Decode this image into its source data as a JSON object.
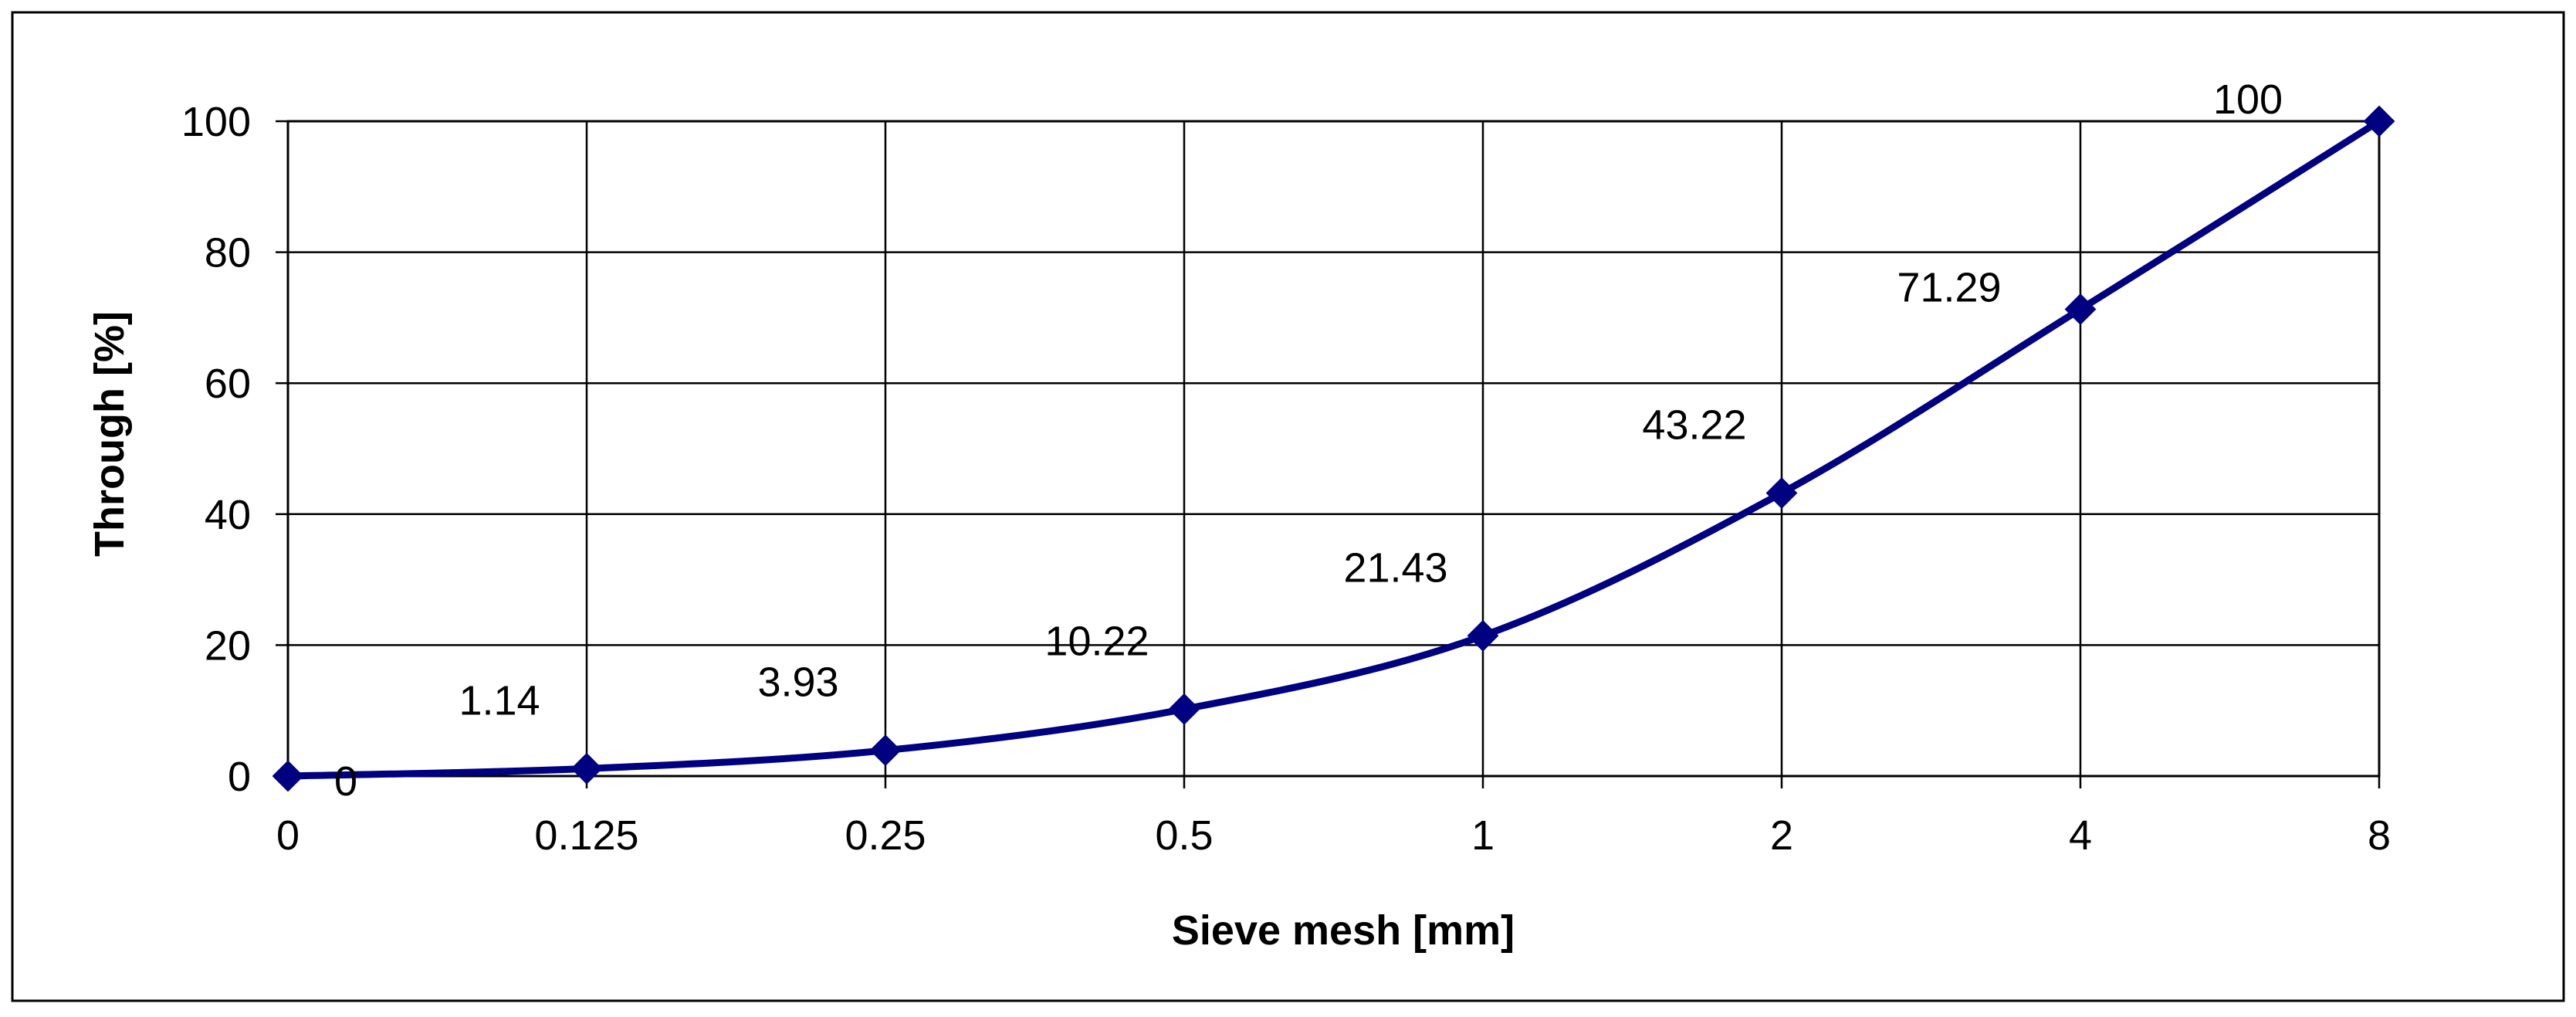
{
  "chart_data": {
    "type": "line",
    "title": "",
    "xlabel": "Sieve mesh [mm]",
    "ylabel": "Through [%]",
    "categories": [
      "0",
      "0.125",
      "0.25",
      "0.5",
      "1",
      "2",
      "4",
      "8"
    ],
    "series": [
      {
        "name": "Through",
        "values": [
          0,
          1.14,
          3.93,
          10.22,
          21.43,
          43.22,
          71.29,
          100
        ],
        "data_labels": [
          "0",
          "1.14",
          "3.93",
          "10.22",
          "21.43",
          "43.22",
          "71.29",
          "100"
        ],
        "color": "#000080",
        "marker": "diamond",
        "smooth": true
      }
    ],
    "yticks": [
      "0",
      "20",
      "40",
      "60",
      "80",
      "100"
    ],
    "ylim": [
      0,
      100
    ],
    "grid": true,
    "legend": "none"
  }
}
